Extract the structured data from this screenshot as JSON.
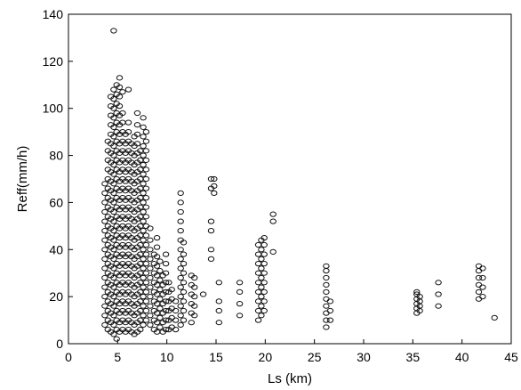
{
  "chart_data": {
    "type": "scatter",
    "title": "",
    "xlabel": "Ls (km)",
    "ylabel": "Reff(mm/h)",
    "xlim": [
      0,
      45
    ],
    "ylim": [
      0,
      140
    ],
    "x_ticks": [
      0,
      5,
      10,
      15,
      20,
      25,
      30,
      35,
      40,
      45
    ],
    "y_ticks": [
      0,
      20,
      40,
      60,
      80,
      100,
      120,
      140
    ],
    "x_tick_labels": [
      "0",
      "5",
      "10",
      "15",
      "20",
      "25",
      "30",
      "35",
      "40",
      "45"
    ],
    "y_tick_labels": [
      "0",
      "20",
      "40",
      "60",
      "80",
      "100",
      "120",
      "140"
    ],
    "grid": false,
    "legend": "none",
    "marker": "open-circle",
    "colors": {
      "marker": "#111111",
      "axis": "#000000",
      "background": "#ffffff"
    },
    "columns": [
      {
        "x": 3.7,
        "values": [
          8,
          12,
          16,
          20,
          24,
          28,
          32,
          36,
          40,
          44,
          48,
          52,
          56,
          60,
          64,
          68
        ]
      },
      {
        "x": 4.0,
        "values": [
          6,
          10,
          14,
          18,
          22,
          26,
          30,
          34,
          38,
          42,
          46,
          50,
          54,
          58,
          62,
          66,
          70,
          74,
          78,
          82,
          86
        ]
      },
      {
        "x": 4.3,
        "values": [
          5,
          9,
          13,
          17,
          21,
          25,
          29,
          33,
          37,
          41,
          45,
          49,
          53,
          57,
          61,
          65,
          69,
          73,
          77,
          81,
          85,
          89,
          93,
          97,
          101,
          105
        ]
      },
      {
        "x": 4.6,
        "values": [
          4,
          8,
          12,
          16,
          20,
          24,
          28,
          32,
          36,
          40,
          44,
          48,
          52,
          56,
          60,
          64,
          68,
          72,
          76,
          80,
          84,
          88,
          92,
          96,
          100,
          104,
          108,
          133
        ]
      },
      {
        "x": 4.9,
        "values": [
          2,
          6,
          10,
          14,
          18,
          22,
          26,
          30,
          34,
          38,
          42,
          46,
          50,
          54,
          58,
          62,
          66,
          70,
          74,
          78,
          82,
          86,
          90,
          94,
          98,
          102,
          106,
          110
        ]
      },
      {
        "x": 5.2,
        "values": [
          5,
          9,
          13,
          17,
          21,
          25,
          29,
          33,
          37,
          41,
          45,
          49,
          53,
          57,
          61,
          65,
          69,
          73,
          77,
          81,
          85,
          89,
          93,
          97,
          101,
          105,
          109,
          113
        ]
      },
      {
        "x": 5.5,
        "values": [
          6,
          10,
          14,
          18,
          22,
          26,
          30,
          34,
          38,
          42,
          46,
          50,
          54,
          58,
          62,
          66,
          70,
          74,
          78,
          82,
          86,
          90,
          94,
          98,
          107
        ]
      },
      {
        "x": 5.8,
        "values": [
          5,
          9,
          13,
          17,
          21,
          25,
          29,
          33,
          37,
          41,
          45,
          49,
          53,
          57,
          61,
          65,
          69,
          73,
          77,
          81,
          85,
          89
        ]
      },
      {
        "x": 6.1,
        "values": [
          6,
          10,
          14,
          18,
          22,
          26,
          30,
          34,
          38,
          42,
          46,
          50,
          54,
          58,
          62,
          66,
          70,
          74,
          78,
          82,
          86,
          90,
          94,
          108
        ]
      },
      {
        "x": 6.4,
        "values": [
          5,
          9,
          13,
          17,
          21,
          25,
          29,
          33,
          37,
          41,
          45,
          49,
          53,
          57,
          61,
          65,
          69,
          73,
          77,
          81,
          85
        ]
      },
      {
        "x": 6.7,
        "values": [
          4,
          8,
          12,
          16,
          20,
          24,
          28,
          32,
          36,
          40,
          44,
          48,
          52,
          56,
          60,
          64,
          68,
          72,
          76,
          80,
          84,
          88
        ]
      },
      {
        "x": 7.0,
        "values": [
          5,
          9,
          13,
          17,
          21,
          25,
          29,
          33,
          37,
          41,
          45,
          49,
          53,
          57,
          61,
          65,
          69,
          73,
          77,
          81,
          85,
          89,
          93,
          98
        ]
      },
      {
        "x": 7.3,
        "values": [
          6,
          10,
          14,
          18,
          22,
          26,
          30,
          34,
          38,
          42,
          46,
          50,
          54,
          58,
          62,
          66,
          70,
          74,
          78,
          82
        ]
      },
      {
        "x": 7.6,
        "values": [
          8,
          12,
          16,
          20,
          24,
          28,
          32,
          36,
          40,
          44,
          48,
          52,
          56,
          60,
          64,
          68,
          72,
          76,
          80,
          84,
          88,
          92,
          96
        ]
      },
      {
        "x": 7.9,
        "values": [
          10,
          14,
          18,
          22,
          26,
          30,
          34,
          38,
          42,
          46,
          50,
          54,
          58,
          62,
          66,
          70,
          74,
          78,
          82,
          86,
          90
        ]
      },
      {
        "x": 8.3,
        "values": [
          8,
          12,
          16,
          20,
          24,
          28,
          32,
          36,
          40,
          44,
          49
        ]
      },
      {
        "x": 8.7,
        "values": [
          6,
          10,
          14,
          18,
          22,
          26,
          30,
          34,
          38
        ]
      },
      {
        "x": 9.0,
        "values": [
          5,
          9,
          13,
          17,
          21,
          25,
          29,
          33,
          37,
          41,
          45
        ]
      },
      {
        "x": 9.3,
        "values": [
          7,
          11,
          15,
          19,
          23,
          27,
          31,
          35
        ]
      },
      {
        "x": 9.6,
        "values": [
          5,
          9,
          13,
          17,
          21,
          25,
          29
        ]
      },
      {
        "x": 9.9,
        "values": [
          6,
          10,
          14,
          18,
          22,
          26,
          30,
          34,
          38
        ]
      },
      {
        "x": 10.2,
        "values": [
          6,
          10,
          14,
          18,
          22,
          26
        ]
      },
      {
        "x": 10.5,
        "values": [
          7,
          11,
          15,
          19,
          23
        ]
      },
      {
        "x": 10.9,
        "values": [
          6,
          10,
          14,
          18
        ]
      },
      {
        "x": 11.4,
        "values": [
          8,
          12,
          16,
          20,
          24,
          28,
          32,
          36,
          40,
          44,
          48,
          52,
          56,
          60,
          64
        ]
      },
      {
        "x": 11.7,
        "values": [
          10,
          14,
          18,
          22,
          26,
          30,
          34,
          38,
          43
        ]
      },
      {
        "x": 12.5,
        "values": [
          9,
          13,
          17,
          21,
          25,
          29
        ]
      },
      {
        "x": 12.8,
        "values": [
          12,
          16,
          20,
          24,
          28
        ]
      },
      {
        "x": 13.7,
        "values": [
          21
        ]
      },
      {
        "x": 14.5,
        "values": [
          36,
          40,
          48,
          52,
          66,
          70
        ]
      },
      {
        "x": 14.8,
        "values": [
          64,
          67,
          70
        ]
      },
      {
        "x": 15.3,
        "values": [
          9,
          14,
          18,
          26
        ]
      },
      {
        "x": 17.4,
        "values": [
          12,
          17,
          22,
          26
        ]
      },
      {
        "x": 19.3,
        "values": [
          10,
          14,
          18,
          22,
          26,
          30,
          34,
          38,
          42
        ]
      },
      {
        "x": 19.6,
        "values": [
          12,
          16,
          20,
          24,
          28,
          32,
          36,
          40,
          44
        ]
      },
      {
        "x": 19.9,
        "values": [
          14,
          18,
          22,
          26,
          30,
          34,
          38,
          42,
          45
        ]
      },
      {
        "x": 20.8,
        "values": [
          39,
          52,
          55
        ]
      },
      {
        "x": 26.2,
        "values": [
          7,
          10,
          13,
          16,
          19,
          22,
          25,
          28,
          31,
          33
        ]
      },
      {
        "x": 26.6,
        "values": [
          10,
          14,
          18
        ]
      },
      {
        "x": 35.4,
        "values": [
          13,
          15,
          17,
          19,
          21,
          22
        ]
      },
      {
        "x": 35.7,
        "values": [
          14,
          16,
          18,
          20
        ]
      },
      {
        "x": 37.6,
        "values": [
          16,
          21,
          26
        ]
      },
      {
        "x": 41.7,
        "values": [
          19,
          22,
          25,
          28,
          31,
          33
        ]
      },
      {
        "x": 42.1,
        "values": [
          20,
          24,
          28,
          32
        ]
      },
      {
        "x": 43.3,
        "values": [
          11
        ]
      }
    ]
  }
}
